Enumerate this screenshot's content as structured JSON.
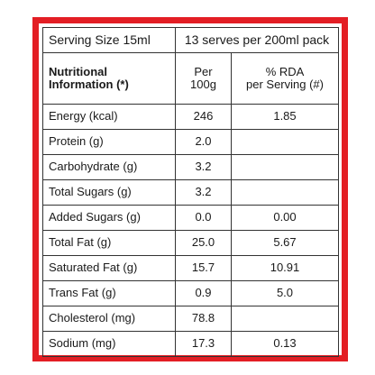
{
  "panel": {
    "border_color": "#e31e24",
    "serving_size": "Serving Size 15ml",
    "serves": "13 serves per 200ml pack",
    "header": {
      "title_line1": "Nutritional",
      "title_line2": "Information (*)",
      "per_line1": "Per",
      "per_line2": "100g",
      "rda_line1": "% RDA",
      "rda_line2": "per Serving (#)"
    },
    "rows": [
      {
        "label": "Energy (kcal)",
        "per100g": "246",
        "rda": "1.85"
      },
      {
        "label": "Protein (g)",
        "per100g": "2.0",
        "rda": ""
      },
      {
        "label": "Carbohydrate (g)",
        "per100g": "3.2",
        "rda": ""
      },
      {
        "label": "Total Sugars (g)",
        "per100g": "3.2",
        "rda": ""
      },
      {
        "label": "Added Sugars (g)",
        "per100g": "0.0",
        "rda": "0.00"
      },
      {
        "label": "Total Fat (g)",
        "per100g": "25.0",
        "rda": "5.67"
      },
      {
        "label": "Saturated Fat (g)",
        "per100g": "15.7",
        "rda": "10.91"
      },
      {
        "label": "Trans Fat (g)",
        "per100g": "0.9",
        "rda": "5.0"
      },
      {
        "label": "Cholesterol (mg)",
        "per100g": "78.8",
        "rda": ""
      },
      {
        "label": "Sodium (mg)",
        "per100g": "17.3",
        "rda": "0.13"
      }
    ]
  }
}
